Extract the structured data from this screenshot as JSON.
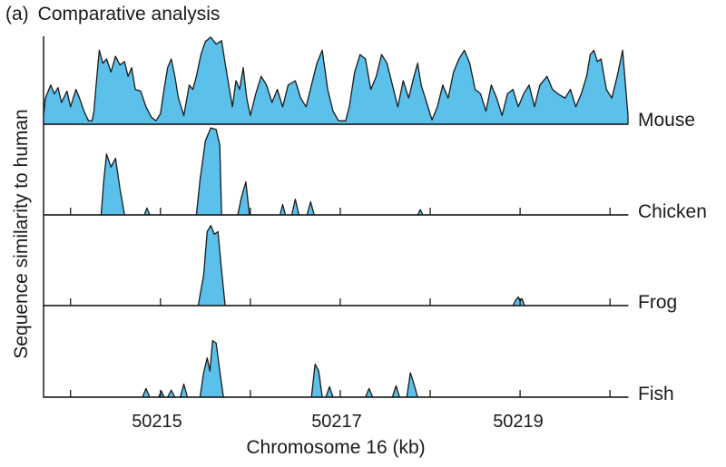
{
  "panel_label": "(a)",
  "title": "Comparative analysis",
  "chart_data": {
    "type": "area",
    "title": "Comparative analysis",
    "xlabel": "Chromosome 16 (kb)",
    "ylabel": "Sequence similarity to human",
    "xlim": [
      50213.7,
      50220.2
    ],
    "ylim": [
      0,
      1
    ],
    "x_tick_labels": [
      "50215",
      "50217",
      "50219"
    ],
    "x_tick_values": [
      50215,
      50217,
      50219
    ],
    "minor_ticks": [
      50214,
      50215,
      50216,
      50217,
      50218,
      50219,
      50220
    ],
    "fill_color": "#5bc0ea",
    "stroke_color": "#1a1a1a",
    "series": [
      {
        "name": "Mouse",
        "points": [
          [
            50213.7,
            0.1
          ],
          [
            50213.72,
            0.3
          ],
          [
            50213.78,
            0.45
          ],
          [
            50213.82,
            0.35
          ],
          [
            50213.86,
            0.42
          ],
          [
            50213.9,
            0.25
          ],
          [
            50213.96,
            0.38
          ],
          [
            50214.0,
            0.2
          ],
          [
            50214.06,
            0.4
          ],
          [
            50214.1,
            0.3
          ],
          [
            50214.15,
            0.15
          ],
          [
            50214.2,
            0.04
          ],
          [
            50214.24,
            0.04
          ],
          [
            50214.26,
            0.15
          ],
          [
            50214.28,
            0.4
          ],
          [
            50214.32,
            0.85
          ],
          [
            50214.36,
            0.7
          ],
          [
            50214.4,
            0.75
          ],
          [
            50214.45,
            0.6
          ],
          [
            50214.5,
            0.78
          ],
          [
            50214.55,
            0.68
          ],
          [
            50214.6,
            0.72
          ],
          [
            50214.64,
            0.55
          ],
          [
            50214.68,
            0.65
          ],
          [
            50214.72,
            0.4
          ],
          [
            50214.78,
            0.38
          ],
          [
            50214.84,
            0.2
          ],
          [
            50214.9,
            0.08
          ],
          [
            50214.95,
            0.04
          ],
          [
            50215.0,
            0.12
          ],
          [
            50215.04,
            0.4
          ],
          [
            50215.08,
            0.65
          ],
          [
            50215.12,
            0.75
          ],
          [
            50215.16,
            0.55
          ],
          [
            50215.2,
            0.3
          ],
          [
            50215.26,
            0.1
          ],
          [
            50215.32,
            0.45
          ],
          [
            50215.36,
            0.4
          ],
          [
            50215.4,
            0.55
          ],
          [
            50215.45,
            0.8
          ],
          [
            50215.5,
            0.95
          ],
          [
            50215.56,
            1.0
          ],
          [
            50215.62,
            0.92
          ],
          [
            50215.68,
            0.96
          ],
          [
            50215.72,
            0.7
          ],
          [
            50215.76,
            0.45
          ],
          [
            50215.8,
            0.2
          ],
          [
            50215.84,
            0.5
          ],
          [
            50215.88,
            0.4
          ],
          [
            50215.92,
            0.65
          ],
          [
            50215.96,
            0.3
          ],
          [
            50216.0,
            0.1
          ],
          [
            50216.06,
            0.35
          ],
          [
            50216.12,
            0.55
          ],
          [
            50216.18,
            0.45
          ],
          [
            50216.24,
            0.25
          ],
          [
            50216.3,
            0.4
          ],
          [
            50216.36,
            0.2
          ],
          [
            50216.42,
            0.45
          ],
          [
            50216.5,
            0.5
          ],
          [
            50216.56,
            0.3
          ],
          [
            50216.62,
            0.2
          ],
          [
            50216.68,
            0.45
          ],
          [
            50216.74,
            0.7
          ],
          [
            50216.8,
            0.85
          ],
          [
            50216.86,
            0.4
          ],
          [
            50216.92,
            0.15
          ],
          [
            50216.98,
            0.04
          ],
          [
            50217.06,
            0.04
          ],
          [
            50217.1,
            0.2
          ],
          [
            50217.16,
            0.6
          ],
          [
            50217.22,
            0.8
          ],
          [
            50217.28,
            0.75
          ],
          [
            50217.34,
            0.4
          ],
          [
            50217.4,
            0.55
          ],
          [
            50217.46,
            0.8
          ],
          [
            50217.52,
            0.7
          ],
          [
            50217.58,
            0.45
          ],
          [
            50217.64,
            0.2
          ],
          [
            50217.7,
            0.5
          ],
          [
            50217.76,
            0.3
          ],
          [
            50217.82,
            0.55
          ],
          [
            50217.86,
            0.7
          ],
          [
            50217.9,
            0.45
          ],
          [
            50217.96,
            0.25
          ],
          [
            50218.02,
            0.05
          ],
          [
            50218.08,
            0.2
          ],
          [
            50218.14,
            0.45
          ],
          [
            50218.2,
            0.3
          ],
          [
            50218.26,
            0.6
          ],
          [
            50218.32,
            0.75
          ],
          [
            50218.38,
            0.85
          ],
          [
            50218.44,
            0.7
          ],
          [
            50218.5,
            0.4
          ],
          [
            50218.56,
            0.35
          ],
          [
            50218.62,
            0.15
          ],
          [
            50218.68,
            0.45
          ],
          [
            50218.74,
            0.3
          ],
          [
            50218.8,
            0.1
          ],
          [
            50218.86,
            0.35
          ],
          [
            50218.92,
            0.4
          ],
          [
            50218.98,
            0.2
          ],
          [
            50219.04,
            0.35
          ],
          [
            50219.1,
            0.45
          ],
          [
            50219.16,
            0.2
          ],
          [
            50219.22,
            0.45
          ],
          [
            50219.3,
            0.55
          ],
          [
            50219.36,
            0.4
          ],
          [
            50219.42,
            0.35
          ],
          [
            50219.5,
            0.3
          ],
          [
            50219.56,
            0.4
          ],
          [
            50219.62,
            0.2
          ],
          [
            50219.68,
            0.35
          ],
          [
            50219.74,
            0.55
          ],
          [
            50219.78,
            0.8
          ],
          [
            50219.82,
            0.85
          ],
          [
            50219.86,
            0.72
          ],
          [
            50219.9,
            0.75
          ],
          [
            50219.96,
            0.4
          ],
          [
            50220.02,
            0.3
          ],
          [
            50220.08,
            0.55
          ],
          [
            50220.14,
            0.85
          ],
          [
            50220.2,
            0.1
          ]
        ]
      },
      {
        "name": "Chicken",
        "points": [
          [
            50213.7,
            0
          ],
          [
            50214.34,
            0
          ],
          [
            50214.37,
            0.4
          ],
          [
            50214.4,
            0.7
          ],
          [
            50214.45,
            0.55
          ],
          [
            50214.5,
            0.65
          ],
          [
            50214.55,
            0.3
          ],
          [
            50214.6,
            0
          ],
          [
            50214.82,
            0
          ],
          [
            50214.85,
            0.08
          ],
          [
            50214.88,
            0
          ],
          [
            50215.4,
            0
          ],
          [
            50215.44,
            0.4
          ],
          [
            50215.5,
            0.85
          ],
          [
            50215.56,
            1.0
          ],
          [
            50215.62,
            0.98
          ],
          [
            50215.66,
            0.8
          ],
          [
            50215.68,
            0
          ],
          [
            50215.86,
            0
          ],
          [
            50215.9,
            0.2
          ],
          [
            50215.95,
            0.38
          ],
          [
            50215.99,
            0
          ],
          [
            50216.33,
            0
          ],
          [
            50216.36,
            0.12
          ],
          [
            50216.39,
            0
          ],
          [
            50216.46,
            0
          ],
          [
            50216.5,
            0.18
          ],
          [
            50216.54,
            0
          ],
          [
            50216.63,
            0
          ],
          [
            50216.67,
            0.15
          ],
          [
            50216.71,
            0
          ],
          [
            50217.86,
            0
          ],
          [
            50217.89,
            0.06
          ],
          [
            50217.92,
            0
          ],
          [
            50220.2,
            0
          ]
        ]
      },
      {
        "name": "Frog",
        "points": [
          [
            50213.7,
            0
          ],
          [
            50215.42,
            0
          ],
          [
            50215.48,
            0.35
          ],
          [
            50215.52,
            0.85
          ],
          [
            50215.56,
            0.92
          ],
          [
            50215.6,
            0.82
          ],
          [
            50215.64,
            0.85
          ],
          [
            50215.68,
            0.4
          ],
          [
            50215.72,
            0
          ],
          [
            50218.92,
            0
          ],
          [
            50218.95,
            0.06
          ],
          [
            50218.98,
            0.1
          ],
          [
            50219.0,
            0.05
          ],
          [
            50219.02,
            0.08
          ],
          [
            50219.05,
            0
          ],
          [
            50220.2,
            0
          ]
        ]
      },
      {
        "name": "Fish",
        "points": [
          [
            50213.7,
            0
          ],
          [
            50214.8,
            0
          ],
          [
            50214.84,
            0.1
          ],
          [
            50214.88,
            0
          ],
          [
            50214.98,
            0
          ],
          [
            50215.01,
            0.07
          ],
          [
            50215.04,
            0
          ],
          [
            50215.08,
            0
          ],
          [
            50215.12,
            0.08
          ],
          [
            50215.16,
            0
          ],
          [
            50215.22,
            0
          ],
          [
            50215.26,
            0.15
          ],
          [
            50215.3,
            0
          ],
          [
            50215.44,
            0
          ],
          [
            50215.48,
            0.28
          ],
          [
            50215.52,
            0.45
          ],
          [
            50215.55,
            0.3
          ],
          [
            50215.58,
            0.65
          ],
          [
            50215.62,
            0.62
          ],
          [
            50215.66,
            0.3
          ],
          [
            50215.7,
            0
          ],
          [
            50216.68,
            0
          ],
          [
            50216.72,
            0.38
          ],
          [
            50216.76,
            0.3
          ],
          [
            50216.8,
            0
          ],
          [
            50216.84,
            0
          ],
          [
            50216.88,
            0.12
          ],
          [
            50216.92,
            0
          ],
          [
            50217.28,
            0
          ],
          [
            50217.32,
            0.1
          ],
          [
            50217.36,
            0
          ],
          [
            50217.58,
            0
          ],
          [
            50217.62,
            0.13
          ],
          [
            50217.66,
            0
          ],
          [
            50217.74,
            0
          ],
          [
            50217.78,
            0.28
          ],
          [
            50217.82,
            0.15
          ],
          [
            50217.86,
            0
          ],
          [
            50220.2,
            0
          ]
        ]
      }
    ]
  }
}
